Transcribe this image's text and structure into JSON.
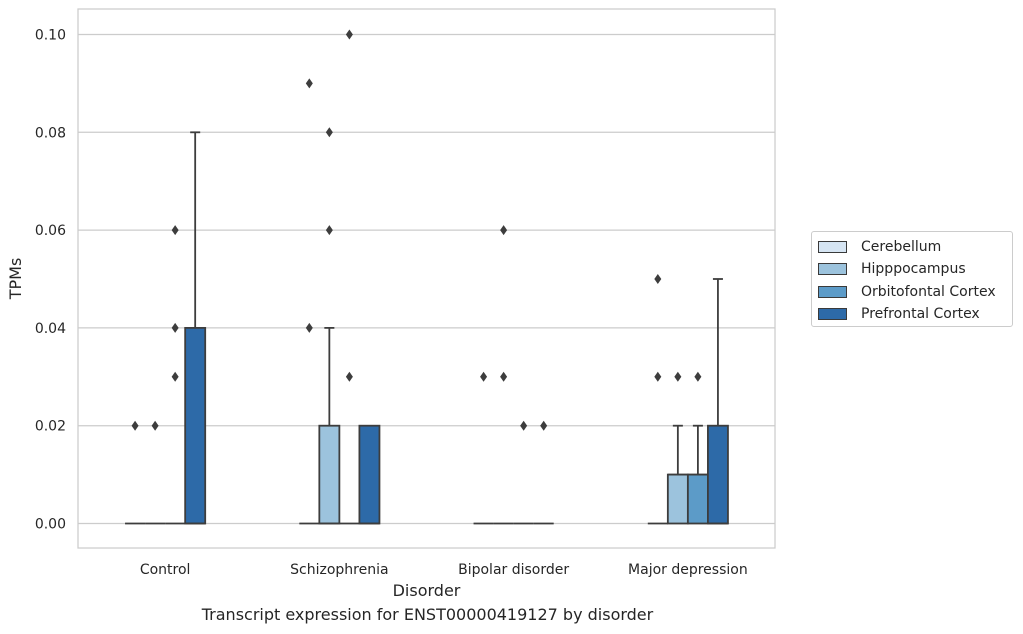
{
  "chart_data": {
    "type": "boxplot",
    "caption": "Transcript expression for ENST00000419127 by disorder",
    "xlabel": "Disorder",
    "ylabel": "TPMs",
    "ylim": [
      -0.005,
      0.105
    ],
    "yticks": [
      "0.00",
      "0.02",
      "0.04",
      "0.06",
      "0.08",
      "0.10"
    ],
    "ytick_values": [
      0.0,
      0.02,
      0.04,
      0.06,
      0.08,
      0.1
    ],
    "categories": [
      "Control",
      "Schizophrenia",
      "Bipolar disorder",
      "Major depression"
    ],
    "grid": true,
    "legend_position": "right",
    "series": [
      {
        "name": "Cerebellum",
        "color": "#d6e5f3",
        "boxes": [
          {
            "q1": 0,
            "median": 0,
            "q3": 0,
            "whislo": 0,
            "whishi": 0,
            "fliers": [
              0.02
            ]
          },
          {
            "q1": 0,
            "median": 0,
            "q3": 0,
            "whislo": 0,
            "whishi": 0,
            "fliers": [
              0.04,
              0.09
            ]
          },
          {
            "q1": 0,
            "median": 0,
            "q3": 0,
            "whislo": 0,
            "whishi": 0,
            "fliers": [
              0.03
            ]
          },
          {
            "q1": 0,
            "median": 0,
            "q3": 0,
            "whislo": 0,
            "whishi": 0,
            "fliers": [
              0.03,
              0.05
            ]
          }
        ]
      },
      {
        "name": "Hipppocampus",
        "color": "#9cc3dd",
        "boxes": [
          {
            "q1": 0,
            "median": 0,
            "q3": 0,
            "whislo": 0,
            "whishi": 0,
            "fliers": [
              0.02
            ]
          },
          {
            "q1": 0,
            "median": 0,
            "q3": 0.02,
            "whislo": 0,
            "whishi": 0.04,
            "fliers": [
              0.06,
              0.08
            ]
          },
          {
            "q1": 0,
            "median": 0,
            "q3": 0,
            "whislo": 0,
            "whishi": 0,
            "fliers": [
              0.03,
              0.06
            ]
          },
          {
            "q1": 0,
            "median": 0.01,
            "q3": 0.01,
            "whislo": 0,
            "whishi": 0.02,
            "fliers": [
              0.03
            ]
          }
        ]
      },
      {
        "name": "Orbitofontal Cortex",
        "color": "#5c9bc8",
        "boxes": [
          {
            "q1": 0,
            "median": 0,
            "q3": 0,
            "whislo": 0,
            "whishi": 0,
            "fliers": [
              0.03,
              0.04,
              0.06
            ]
          },
          {
            "q1": 0,
            "median": 0,
            "q3": 0,
            "whislo": 0,
            "whishi": 0,
            "fliers": [
              0.03,
              0.1
            ]
          },
          {
            "q1": 0,
            "median": 0,
            "q3": 0,
            "whislo": 0,
            "whishi": 0,
            "fliers": [
              0.02
            ]
          },
          {
            "q1": 0,
            "median": 0.01,
            "q3": 0.01,
            "whislo": 0,
            "whishi": 0.02,
            "fliers": [
              0.03
            ]
          }
        ]
      },
      {
        "name": "Prefrontal Cortex",
        "color": "#2d6aa8",
        "boxes": [
          {
            "q1": 0,
            "median": 0,
            "q3": 0.04,
            "whislo": 0,
            "whishi": 0.08,
            "fliers": []
          },
          {
            "q1": 0,
            "median": 0,
            "q3": 0.02,
            "whislo": 0,
            "whishi": 0.02,
            "fliers": []
          },
          {
            "q1": 0,
            "median": 0,
            "q3": 0,
            "whislo": 0,
            "whishi": 0,
            "fliers": [
              0.02
            ]
          },
          {
            "q1": 0,
            "median": 0,
            "q3": 0.02,
            "whislo": 0,
            "whishi": 0.05,
            "fliers": []
          }
        ]
      }
    ]
  }
}
